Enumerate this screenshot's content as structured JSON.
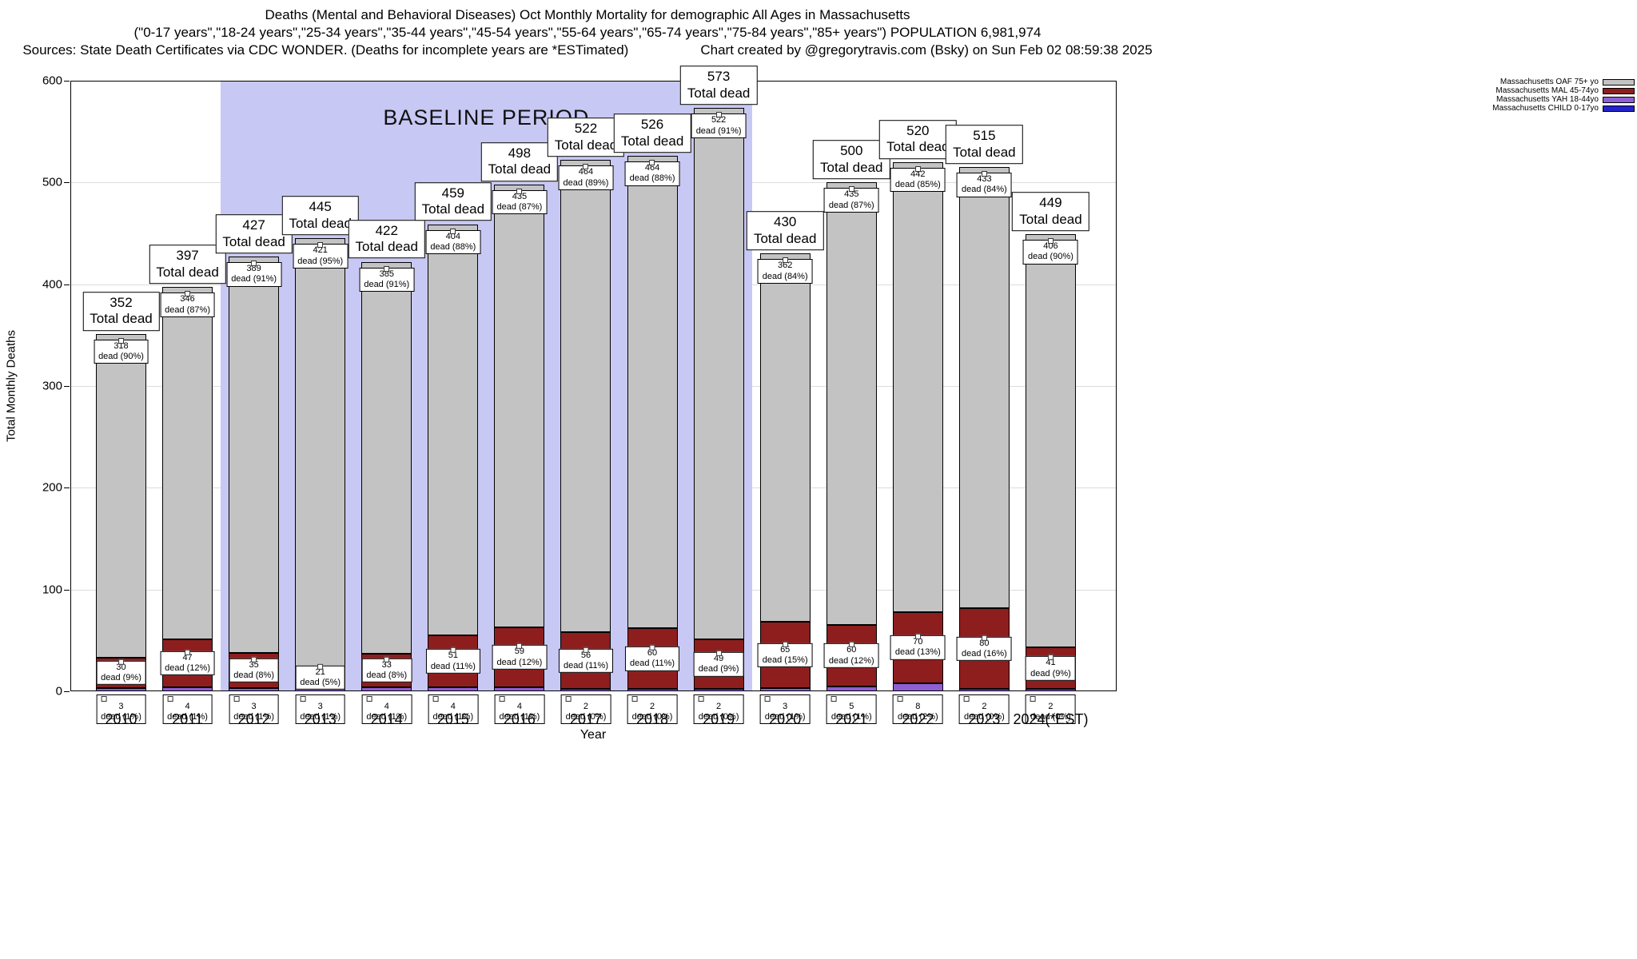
{
  "header": {
    "title_line1": "Deaths (Mental and Behavioral Diseases) Oct Monthly Mortality for demographic All Ages in Massachusetts",
    "title_line2": "(\"0-17 years\",\"18-24 years\",\"25-34 years\",\"35-44 years\",\"45-54 years\",\"55-64 years\",\"65-74 years\",\"75-84 years\",\"85+ years\") POPULATION 6,981,974",
    "sources": "Sources: State Death Certificates via CDC WONDER. (Deaths for incomplete years are *ESTimated)",
    "credit": "Chart created by @gregorytravis.com (Bsky) on Sun Feb 02 08:59:38 2025"
  },
  "chart_data": {
    "type": "bar",
    "stacked": true,
    "title": "Deaths (Mental and Behavioral Diseases) Oct Monthly Mortality for demographic All Ages in Massachusetts",
    "xlabel": "Year",
    "ylabel": "Total Monthly Deaths",
    "ylim": [
      0,
      600
    ],
    "yticks": [
      0,
      100,
      200,
      300,
      400,
      500,
      600
    ],
    "grid": true,
    "legend_position": "top-right",
    "categories": [
      "2010",
      "2011",
      "2012",
      "2013",
      "2014",
      "2015",
      "2016",
      "2017",
      "2018",
      "2019",
      "2020",
      "2021",
      "2022",
      "2023",
      "2024(*EST)"
    ],
    "totals": [
      352,
      397,
      427,
      445,
      422,
      459,
      498,
      522,
      526,
      573,
      430,
      500,
      520,
      515,
      449
    ],
    "total_label_suffix": "Total dead",
    "segment_label_word": "dead",
    "series": [
      {
        "key": "oaf",
        "name": "Massachusetts OAF 75+ yo",
        "color": "#c3c3c3",
        "values": [
          318,
          346,
          389,
          421,
          385,
          404,
          435,
          464,
          464,
          522,
          362,
          435,
          442,
          433,
          406
        ],
        "pct": [
          "90%",
          "87%",
          "91%",
          "95%",
          "91%",
          "88%",
          "87%",
          "89%",
          "88%",
          "91%",
          "84%",
          "87%",
          "85%",
          "84%",
          "90%"
        ]
      },
      {
        "key": "mal",
        "name": "Massachusetts MAL 45-74yo",
        "color": "#8e1e1e",
        "values": [
          30,
          47,
          35,
          21,
          33,
          51,
          59,
          56,
          60,
          49,
          65,
          60,
          70,
          80,
          41
        ],
        "pct": [
          "9%",
          "12%",
          "8%",
          "5%",
          "8%",
          "11%",
          "12%",
          "11%",
          "11%",
          "9%",
          "15%",
          "12%",
          "13%",
          "16%",
          "9%"
        ]
      },
      {
        "key": "yah",
        "name": "Massachusetts YAH 18-44yo",
        "color": "#8f5fd4",
        "values": [
          3,
          4,
          3,
          3,
          4,
          4,
          4,
          2,
          2,
          2,
          3,
          5,
          8,
          2,
          2
        ],
        "pct": [
          "1%",
          "1%",
          "1%",
          "1%",
          "1%",
          "1%",
          "1%",
          "0%",
          "0%",
          "0%",
          "1%",
          "1%",
          "2%",
          "0%",
          "0%"
        ]
      }
    ],
    "legend": [
      {
        "key": "oaf",
        "label": "Massachusetts OAF 75+ yo",
        "color": "#c3c3c3"
      },
      {
        "key": "mal",
        "label": "Massachusetts MAL 45-74yo",
        "color": "#8e1e1e"
      },
      {
        "key": "yah",
        "label": "Massachusetts YAH 18-44yo",
        "color": "#8f5fd4"
      },
      {
        "key": "child",
        "label": "Massachusetts CHILD 0-17yo",
        "color": "#2424cc"
      }
    ],
    "baseline": {
      "label": "BASELINE PERIOD",
      "start_category": "2012",
      "end_category": "2019",
      "band_color": "#c8c8f4"
    }
  }
}
